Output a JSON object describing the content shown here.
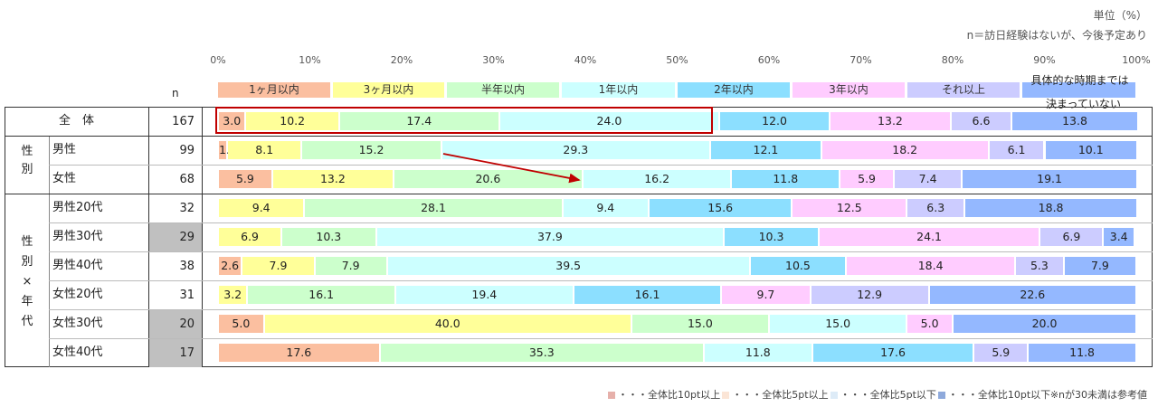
{
  "header": {
    "unit": "単位（%）",
    "base": "n＝訪日経験はないが、今後予定あり"
  },
  "axis": {
    "ticks": [
      "0%",
      "10%",
      "20%",
      "30%",
      "40%",
      "50%",
      "60%",
      "70%",
      "80%",
      "90%",
      "100%"
    ]
  },
  "categories": [
    {
      "label": "1ヶ月以内",
      "color": "#FBBFA0"
    },
    {
      "label": "3ヶ月以内",
      "color": "#FFFF99"
    },
    {
      "label": "半年以内",
      "color": "#CCFFCC"
    },
    {
      "label": "1年以内",
      "color": "#CCFFFF"
    },
    {
      "label": "2年以内",
      "color": "#8CDFFF"
    },
    {
      "label": "3年以内",
      "color": "#FFCCFF"
    },
    {
      "label": "それ以上",
      "color": "#CCCCFF"
    },
    {
      "label": "具体的な時期までは決まっていない",
      "label_line1": "具体的な時期までは",
      "label_line2": "決まっていない",
      "color": "#94B8FF"
    }
  ],
  "table": {
    "n_header": "n",
    "total_label": "全　体",
    "group_gender_label": "性別",
    "group_gender_age_label": "性別×年代",
    "low_n_fill": "#C0C0C0"
  },
  "chart_data": {
    "type": "bar",
    "orientation": "horizontal-stacked-100",
    "title": "",
    "unit": "%",
    "xlim": [
      0,
      100
    ],
    "series_names": [
      "1ヶ月以内",
      "3ヶ月以内",
      "半年以内",
      "1年以内",
      "2年以内",
      "3年以内",
      "それ以上",
      "具体的な時期までは決まっていない"
    ],
    "rows": [
      {
        "label": "全体",
        "n": 167,
        "low_n": false,
        "values": [
          3.0,
          10.2,
          17.4,
          24.0,
          12.0,
          13.2,
          6.6,
          13.8
        ]
      },
      {
        "label": "男性",
        "n": 99,
        "low_n": false,
        "values": [
          1.0,
          8.1,
          15.2,
          29.3,
          12.1,
          18.2,
          6.1,
          10.1
        ]
      },
      {
        "label": "女性",
        "n": 68,
        "low_n": false,
        "values": [
          5.9,
          13.2,
          20.6,
          16.2,
          11.8,
          5.9,
          7.4,
          19.1
        ]
      },
      {
        "label": "男性20代",
        "n": 32,
        "low_n": false,
        "values": [
          0,
          9.4,
          28.1,
          9.4,
          15.6,
          12.5,
          6.3,
          18.8
        ]
      },
      {
        "label": "男性30代",
        "n": 29,
        "low_n": true,
        "values": [
          0,
          6.9,
          10.3,
          37.9,
          10.3,
          24.1,
          6.9,
          3.4
        ]
      },
      {
        "label": "男性40代",
        "n": 38,
        "low_n": false,
        "values": [
          2.6,
          7.9,
          7.9,
          39.5,
          10.5,
          18.4,
          5.3,
          7.9
        ]
      },
      {
        "label": "女性20代",
        "n": 31,
        "low_n": false,
        "values": [
          0,
          3.2,
          16.1,
          19.4,
          16.1,
          9.7,
          12.9,
          22.6
        ]
      },
      {
        "label": "女性30代",
        "n": 20,
        "low_n": true,
        "values": [
          5.0,
          40.0,
          15.0,
          15.0,
          0,
          5.0,
          0,
          20.0
        ]
      },
      {
        "label": "女性40代",
        "n": 17,
        "low_n": true,
        "values": [
          17.6,
          0,
          35.3,
          11.8,
          17.6,
          0,
          5.9,
          11.8
        ]
      }
    ],
    "annotations": [
      {
        "type": "highlight-box",
        "row": "全体",
        "range": "1ヶ月以内〜1年以内",
        "color": "#C00000"
      },
      {
        "type": "arrow",
        "from": "男性 半年以内",
        "to": "女性 1年以内",
        "color": "#C00000"
      }
    ]
  },
  "footer": {
    "legend": [
      {
        "chip": "#E6B0AA",
        "label": "・・・全体比10pt以上"
      },
      {
        "chip": "#FBE5D6",
        "label": "・・・全体比5pt以上"
      },
      {
        "chip": "#DDEBF7",
        "label": "・・・全体比5pt以下"
      },
      {
        "chip": "#8EA9DB",
        "label": "・・・全体比10pt以下"
      }
    ],
    "note": "※nが30未満は参考値"
  }
}
